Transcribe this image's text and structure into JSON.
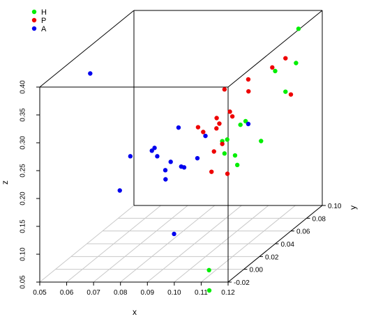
{
  "chart_data": {
    "type": "scatter",
    "title": "",
    "xlabel": "x",
    "ylabel": "y",
    "zlabel": "z",
    "xlim": [
      0.05,
      0.12
    ],
    "ylim": [
      -0.02,
      0.1
    ],
    "zlim": [
      0.05,
      0.4
    ],
    "x_ticks": [
      "0.05",
      "0.06",
      "0.07",
      "0.08",
      "0.09",
      "0.10",
      "0.11",
      "0.12"
    ],
    "y_ticks": [
      "-0.02",
      "0.00",
      "0.02",
      "0.04",
      "0.06",
      "0.08",
      "0.10"
    ],
    "z_ticks": [
      "0.05",
      "0.10",
      "0.15",
      "0.20",
      "0.25",
      "0.30",
      "0.35",
      "0.40"
    ],
    "grid": "floor",
    "legend_position": "top-left",
    "series": [
      {
        "name": "H",
        "color": "#00ee00",
        "points": [
          [
            0.103,
            0.05,
            0.18
          ],
          [
            0.106,
            0.07,
            0.2
          ],
          [
            0.108,
            0.03,
            0.22
          ],
          [
            0.107,
            0.02,
            0.235
          ],
          [
            0.108,
            0.02,
            0.26
          ],
          [
            0.109,
            0.04,
            0.27
          ],
          [
            0.11,
            0.03,
            0.275
          ],
          [
            0.112,
            0.0,
            0.28
          ],
          [
            0.118,
            0.06,
            0.3
          ],
          [
            0.119,
            0.07,
            0.34
          ],
          [
            0.12,
            0.04,
            0.36
          ],
          [
            0.117,
            0.08,
            0.39
          ],
          [
            0.11,
            -0.01,
            0.06
          ],
          [
            0.113,
            -0.02,
            0.035
          ]
        ]
      },
      {
        "name": "P",
        "color": "#ee0000",
        "points": [
          [
            0.102,
            0.01,
            0.285
          ],
          [
            0.103,
            0.0,
            0.305
          ],
          [
            0.104,
            0.02,
            0.28
          ],
          [
            0.106,
            0.01,
            0.25
          ],
          [
            0.107,
            0.03,
            0.29
          ],
          [
            0.108,
            0.01,
            0.3
          ],
          [
            0.109,
            0.02,
            0.31
          ],
          [
            0.107,
            0.01,
            0.31
          ],
          [
            0.107,
            0.02,
            0.35
          ],
          [
            0.11,
            0.04,
            0.345
          ],
          [
            0.113,
            0.03,
            0.335
          ],
          [
            0.112,
            0.0,
            0.275
          ],
          [
            0.116,
            0.05,
            0.355
          ],
          [
            0.118,
            0.06,
            0.36
          ],
          [
            0.12,
            0.06,
            0.295
          ],
          [
            0.108,
            0.0,
            0.225
          ],
          [
            0.111,
            0.01,
            0.21
          ]
        ]
      },
      {
        "name": "A",
        "color": "#0000ee",
        "points": [
          [
            0.06,
            0.01,
            0.39
          ],
          [
            0.072,
            0.02,
            0.23
          ],
          [
            0.071,
            0.01,
            0.18
          ],
          [
            0.08,
            0.02,
            0.24
          ],
          [
            0.081,
            0.02,
            0.245
          ],
          [
            0.082,
            0.02,
            0.23
          ],
          [
            0.085,
            0.02,
            0.205
          ],
          [
            0.087,
            0.03,
            0.27
          ],
          [
            0.087,
            0.02,
            0.22
          ],
          [
            0.088,
            0.01,
            0.2
          ],
          [
            0.092,
            0.02,
            0.21
          ],
          [
            0.094,
            0.03,
            0.215
          ],
          [
            0.097,
            0.03,
            0.255
          ],
          [
            0.11,
            0.04,
            0.265
          ],
          [
            0.097,
            -0.01,
            0.125
          ],
          [
            0.088,
            0.03,
            0.2
          ]
        ]
      }
    ]
  }
}
